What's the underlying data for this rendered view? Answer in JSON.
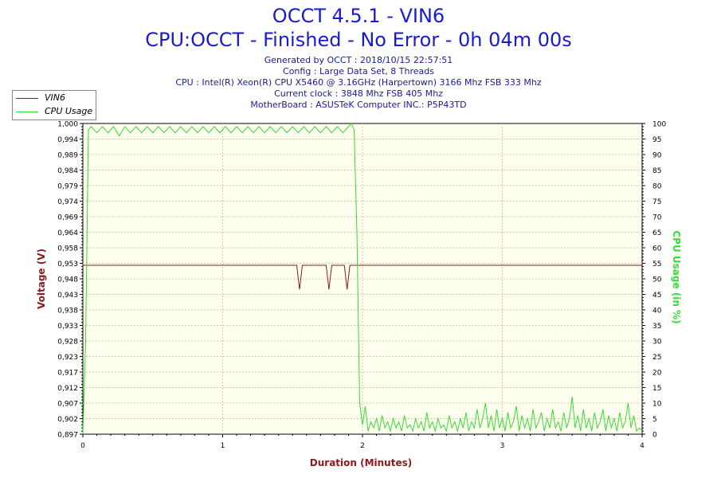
{
  "header": {
    "title": "OCCT 4.5.1 - VIN6",
    "subtitle": "CPU:OCCT - Finished - No Error - 0h 04m 00s",
    "generated": "Generated by OCCT : 2018/10/15 22:57:51",
    "config": "Config : Large Data Set, 8 Threads",
    "cpu": "CPU : Intel(R) Xeon(R) CPU X5460 @ 3.16GHz (Harpertown) 3166 Mhz FSB 333 Mhz",
    "clock": "Current clock : 3848 Mhz FSB 405 Mhz",
    "motherboard": "MotherBoard : ASUSTeK Computer INC.: P5P43TD"
  },
  "legend": {
    "items": [
      {
        "label": "VIN6",
        "color": "#8b1a1a"
      },
      {
        "label": "CPU Usage",
        "color": "#33dd33"
      }
    ]
  },
  "chart_data": {
    "type": "line",
    "xlabel": "Duration (Minutes)",
    "ylabel_left": "Voltage (V)",
    "ylabel_right": "CPU Usage (in %)",
    "xlim": [
      0,
      4
    ],
    "ylim_left": [
      0.897,
      1.0
    ],
    "ylim_right": [
      0,
      100
    ],
    "x_ticks": [
      "0",
      "1",
      "2",
      "3",
      "4"
    ],
    "y_left_ticks": [
      "1,000",
      "0,994",
      "0,989",
      "0,984",
      "0,979",
      "0,974",
      "0,969",
      "0,964",
      "0,958",
      "0,953",
      "0,948",
      "0,943",
      "0,938",
      "0,933",
      "0,928",
      "0,923",
      "0,917",
      "0,912",
      "0,907",
      "0,902",
      "0,897"
    ],
    "y_right_ticks": [
      "100",
      "95",
      "90",
      "85",
      "80",
      "75",
      "70",
      "65",
      "60",
      "55",
      "50",
      "45",
      "40",
      "35",
      "30",
      "25",
      "20",
      "15",
      "10",
      "5",
      "0"
    ],
    "grid": true,
    "colors": {
      "background": "#fffff0",
      "grid": "#cccc99",
      "vin6": "#8b1a1a",
      "cpu": "#33dd33",
      "axis_label": "#8b1a1a",
      "right_label": "#33dd33"
    },
    "series": [
      {
        "name": "VIN6",
        "axis": "left",
        "points": [
          [
            0,
            0.953
          ],
          [
            1.53,
            0.953
          ],
          [
            1.55,
            0.945
          ],
          [
            1.57,
            0.953
          ],
          [
            1.74,
            0.953
          ],
          [
            1.76,
            0.945
          ],
          [
            1.78,
            0.953
          ],
          [
            1.87,
            0.953
          ],
          [
            1.89,
            0.945
          ],
          [
            1.91,
            0.953
          ],
          [
            4,
            0.953
          ]
        ]
      },
      {
        "name": "CPU Usage",
        "axis": "right",
        "points": [
          [
            0,
            0
          ],
          [
            0.02,
            30
          ],
          [
            0.04,
            98
          ],
          [
            0.06,
            99
          ],
          [
            0.1,
            97
          ],
          [
            0.14,
            99
          ],
          [
            0.18,
            97
          ],
          [
            0.22,
            99
          ],
          [
            0.26,
            96
          ],
          [
            0.3,
            99
          ],
          [
            0.34,
            97
          ],
          [
            0.38,
            99
          ],
          [
            0.42,
            97
          ],
          [
            0.46,
            99
          ],
          [
            0.5,
            97
          ],
          [
            0.54,
            99
          ],
          [
            0.58,
            97
          ],
          [
            0.62,
            99
          ],
          [
            0.66,
            97
          ],
          [
            0.7,
            99
          ],
          [
            0.74,
            97
          ],
          [
            0.78,
            99
          ],
          [
            0.82,
            97
          ],
          [
            0.86,
            99
          ],
          [
            0.9,
            97
          ],
          [
            0.94,
            99
          ],
          [
            0.98,
            97
          ],
          [
            1.02,
            99
          ],
          [
            1.06,
            97
          ],
          [
            1.1,
            99
          ],
          [
            1.14,
            97
          ],
          [
            1.18,
            99
          ],
          [
            1.22,
            97
          ],
          [
            1.26,
            99
          ],
          [
            1.3,
            97
          ],
          [
            1.34,
            99
          ],
          [
            1.38,
            97
          ],
          [
            1.42,
            99
          ],
          [
            1.46,
            97
          ],
          [
            1.5,
            99
          ],
          [
            1.54,
            97
          ],
          [
            1.58,
            99
          ],
          [
            1.62,
            97
          ],
          [
            1.66,
            99
          ],
          [
            1.7,
            97
          ],
          [
            1.74,
            99
          ],
          [
            1.78,
            97
          ],
          [
            1.82,
            99
          ],
          [
            1.86,
            97
          ],
          [
            1.9,
            99
          ],
          [
            1.92,
            100
          ],
          [
            1.94,
            98
          ],
          [
            1.96,
            65
          ],
          [
            1.98,
            10
          ],
          [
            2.0,
            3
          ],
          [
            2.02,
            9
          ],
          [
            2.04,
            1
          ],
          [
            2.06,
            4
          ],
          [
            2.08,
            2
          ],
          [
            2.1,
            5
          ],
          [
            2.12,
            1
          ],
          [
            2.14,
            6
          ],
          [
            2.16,
            2
          ],
          [
            2.18,
            4
          ],
          [
            2.2,
            1
          ],
          [
            2.22,
            5
          ],
          [
            2.24,
            2
          ],
          [
            2.26,
            4
          ],
          [
            2.28,
            1
          ],
          [
            2.3,
            6
          ],
          [
            2.32,
            2
          ],
          [
            2.34,
            3
          ],
          [
            2.36,
            1
          ],
          [
            2.38,
            5
          ],
          [
            2.4,
            2
          ],
          [
            2.42,
            4
          ],
          [
            2.44,
            1
          ],
          [
            2.46,
            7
          ],
          [
            2.48,
            2
          ],
          [
            2.5,
            4
          ],
          [
            2.52,
            1
          ],
          [
            2.54,
            5
          ],
          [
            2.56,
            2
          ],
          [
            2.58,
            3
          ],
          [
            2.6,
            1
          ],
          [
            2.62,
            6
          ],
          [
            2.64,
            2
          ],
          [
            2.66,
            4
          ],
          [
            2.68,
            1
          ],
          [
            2.7,
            5
          ],
          [
            2.72,
            2
          ],
          [
            2.74,
            7
          ],
          [
            2.76,
            1
          ],
          [
            2.78,
            4
          ],
          [
            2.8,
            2
          ],
          [
            2.82,
            8
          ],
          [
            2.84,
            2
          ],
          [
            2.86,
            5
          ],
          [
            2.88,
            10
          ],
          [
            2.9,
            2
          ],
          [
            2.92,
            6
          ],
          [
            2.94,
            1
          ],
          [
            2.96,
            8
          ],
          [
            2.98,
            2
          ],
          [
            3.0,
            5
          ],
          [
            3.02,
            1
          ],
          [
            3.04,
            7
          ],
          [
            3.06,
            2
          ],
          [
            3.08,
            4
          ],
          [
            3.1,
            9
          ],
          [
            3.12,
            1
          ],
          [
            3.14,
            6
          ],
          [
            3.16,
            2
          ],
          [
            3.18,
            5
          ],
          [
            3.2,
            1
          ],
          [
            3.22,
            8
          ],
          [
            3.24,
            2
          ],
          [
            3.26,
            4
          ],
          [
            3.28,
            7
          ],
          [
            3.3,
            1
          ],
          [
            3.32,
            5
          ],
          [
            3.34,
            2
          ],
          [
            3.36,
            8
          ],
          [
            3.38,
            2
          ],
          [
            3.4,
            4
          ],
          [
            3.42,
            1
          ],
          [
            3.44,
            7
          ],
          [
            3.46,
            2
          ],
          [
            3.48,
            5
          ],
          [
            3.5,
            12
          ],
          [
            3.52,
            2
          ],
          [
            3.54,
            6
          ],
          [
            3.56,
            1
          ],
          [
            3.58,
            8
          ],
          [
            3.6,
            2
          ],
          [
            3.62,
            5
          ],
          [
            3.64,
            1
          ],
          [
            3.66,
            7
          ],
          [
            3.68,
            2
          ],
          [
            3.7,
            4
          ],
          [
            3.72,
            8
          ],
          [
            3.74,
            1
          ],
          [
            3.76,
            6
          ],
          [
            3.78,
            2
          ],
          [
            3.8,
            5
          ],
          [
            3.82,
            1
          ],
          [
            3.84,
            7
          ],
          [
            3.86,
            2
          ],
          [
            3.88,
            4
          ],
          [
            3.9,
            10
          ],
          [
            3.92,
            2
          ],
          [
            3.94,
            6
          ],
          [
            3.96,
            1
          ],
          [
            3.98,
            2
          ],
          [
            4,
            1
          ]
        ]
      }
    ]
  }
}
